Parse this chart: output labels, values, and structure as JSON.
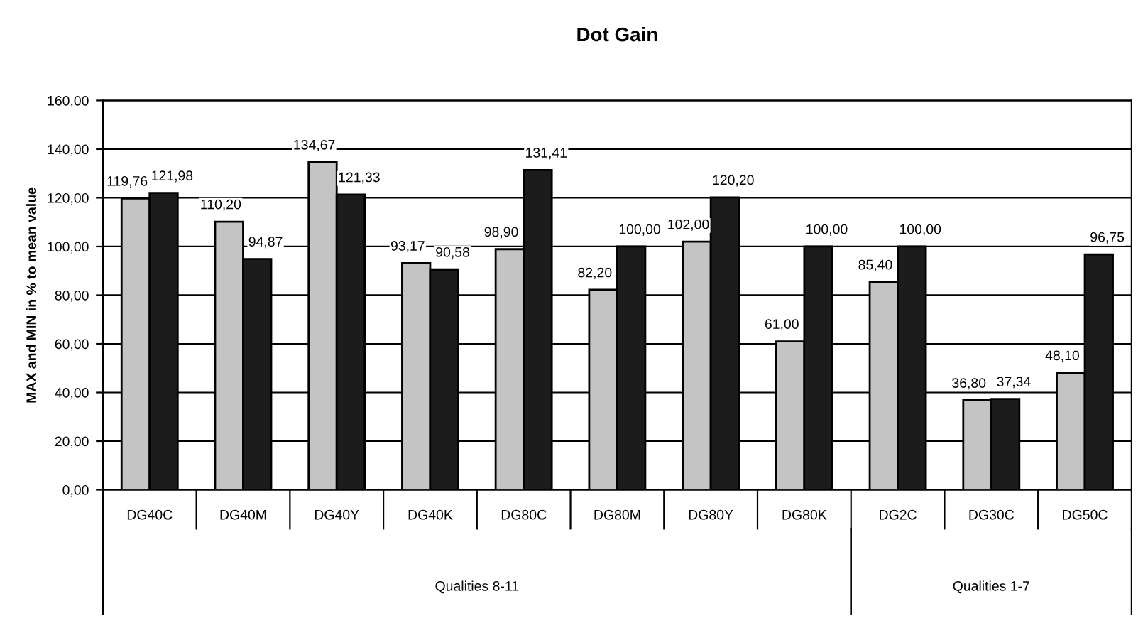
{
  "chart_data": {
    "type": "bar",
    "title": "Dot Gain",
    "ylabel": "MAX and MIN in % to mean value",
    "categories": [
      "DG40C",
      "DG40M",
      "DG40Y",
      "DG40K",
      "DG80C",
      "DG80M",
      "DG80Y",
      "DG80K",
      "DG2C",
      "DG30C",
      "DG50C"
    ],
    "series": [
      {
        "color": "#c4c4c4",
        "values": [
          119.76,
          110.2,
          134.67,
          93.17,
          98.9,
          82.2,
          102.0,
          61.0,
          85.4,
          36.8,
          48.1
        ],
        "value_labels": [
          "119,76",
          "110,20",
          "134,67",
          "93,17",
          "98,90",
          "82,20",
          "102,00",
          "61,00",
          "85,40",
          "36,80",
          "48,10"
        ]
      },
      {
        "color": "#1c1c1c",
        "values": [
          121.98,
          94.87,
          121.33,
          90.58,
          131.41,
          100.0,
          120.2,
          100.0,
          100.0,
          37.34,
          96.75
        ],
        "value_labels": [
          "121,98",
          "94,87",
          "121,33",
          "90,58",
          "131,41",
          "100,00",
          "120,20",
          "100,00",
          "100,00",
          "37,34",
          "96,75"
        ]
      }
    ],
    "ylim": [
      0,
      160
    ],
    "yticks": [
      {
        "value": 0,
        "label": "0,00"
      },
      {
        "value": 20,
        "label": "20,00"
      },
      {
        "value": 40,
        "label": "40,00"
      },
      {
        "value": 60,
        "label": "60,00"
      },
      {
        "value": 80,
        "label": "80,00"
      },
      {
        "value": 100,
        "label": "100,00"
      },
      {
        "value": 120,
        "label": "120,00"
      },
      {
        "value": 140,
        "label": "140,00"
      },
      {
        "value": 160,
        "label": "160,00"
      }
    ],
    "grid": "y",
    "annotations": [
      "Qualities 8-11",
      "Qualities 1-7"
    ]
  }
}
